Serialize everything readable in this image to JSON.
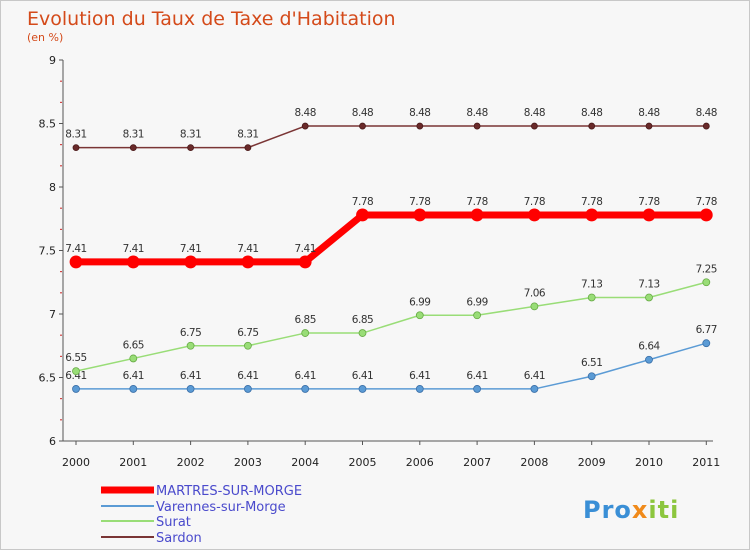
{
  "chart_data": {
    "type": "line",
    "title": "Evolution du Taux de Taxe d'Habitation",
    "subtitle": "(en %)",
    "xlabel": "",
    "ylabel": "",
    "categories": [
      "2000",
      "2001",
      "2002",
      "2003",
      "2004",
      "2005",
      "2006",
      "2007",
      "2008",
      "2009",
      "2010",
      "2011"
    ],
    "ylim": [
      6,
      9
    ],
    "yticks": [
      "6",
      "6.5",
      "7",
      "7.5",
      "8",
      "8.5",
      "9"
    ],
    "grid": false,
    "legend_position": "bottom-left",
    "series": [
      {
        "name": "MARTRES-SUR-MORGE",
        "color": "#ff0000",
        "values": [
          7.41,
          7.41,
          7.41,
          7.41,
          7.41,
          7.78,
          7.78,
          7.78,
          7.78,
          7.78,
          7.78,
          7.78
        ],
        "labels": [
          "7.41",
          "7.41",
          "7.41",
          "7.41",
          "7.41",
          "7.78",
          "7.78",
          "7.78",
          "7.78",
          "7.78",
          "7.78",
          "7.78"
        ]
      },
      {
        "name": "Varennes-sur-Morge",
        "color": "#5b9bd5",
        "values": [
          6.41,
          6.41,
          6.41,
          6.41,
          6.41,
          6.41,
          6.41,
          6.41,
          6.41,
          6.51,
          6.64,
          6.77
        ],
        "labels": [
          "6.41",
          "6.41",
          "6.41",
          "6.41",
          "6.41",
          "6.41",
          "6.41",
          "6.41",
          "6.41",
          "6.51",
          "6.64",
          "6.77"
        ]
      },
      {
        "name": "Surat",
        "color": "#99dd77",
        "values": [
          6.55,
          6.65,
          6.75,
          6.75,
          6.85,
          6.85,
          6.99,
          6.99,
          7.06,
          7.13,
          7.13,
          7.25
        ],
        "labels": [
          "6.55",
          "6.65",
          "6.75",
          "6.75",
          "6.85",
          "6.85",
          "6.99",
          "6.99",
          "7.06",
          "7.13",
          "7.13",
          "7.25"
        ]
      },
      {
        "name": "Sardon",
        "color": "#7a3535",
        "values": [
          8.31,
          8.31,
          8.31,
          8.31,
          8.48,
          8.48,
          8.48,
          8.48,
          8.48,
          8.48,
          8.48,
          8.48
        ],
        "labels": [
          "8.31",
          "8.31",
          "8.31",
          "8.31",
          "8.48",
          "8.48",
          "8.48",
          "8.48",
          "8.48",
          "8.48",
          "8.48",
          "8.48"
        ]
      }
    ]
  },
  "brand": {
    "name": "Proxiti"
  }
}
